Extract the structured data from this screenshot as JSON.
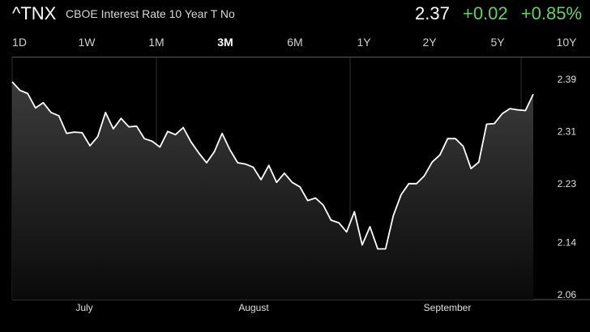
{
  "header": {
    "symbol": "^TNX",
    "name": "CBOE Interest Rate 10 Year T No",
    "last": "2.37",
    "change": "+0.02",
    "change_pct": "+0.85%",
    "change_color": "#5fd35f"
  },
  "ranges": [
    {
      "label": "1D",
      "active": false
    },
    {
      "label": "1W",
      "active": false
    },
    {
      "label": "1M",
      "active": false
    },
    {
      "label": "3M",
      "active": true
    },
    {
      "label": "6M",
      "active": false
    },
    {
      "label": "1Y",
      "active": false
    },
    {
      "label": "2Y",
      "active": false
    },
    {
      "label": "5Y",
      "active": false
    },
    {
      "label": "10Y",
      "active": false
    }
  ],
  "chart_data": {
    "type": "area",
    "ylim": [
      2.06,
      2.39
    ],
    "y_ticks": [
      "2.39",
      "2.31",
      "2.23",
      "2.14",
      "2.06"
    ],
    "x_labels": [
      "July",
      "August",
      "September"
    ],
    "grid": true,
    "line_color": "#ffffff",
    "series": [
      {
        "values": [
          2.385,
          2.372,
          2.367,
          2.345,
          2.353,
          2.338,
          2.333,
          2.306,
          2.308,
          2.307,
          2.287,
          2.301,
          2.338,
          2.313,
          2.329,
          2.316,
          2.317,
          2.298,
          2.294,
          2.285,
          2.309,
          2.304,
          2.315,
          2.293,
          2.276,
          2.261,
          2.278,
          2.306,
          2.281,
          2.261,
          2.259,
          2.254,
          2.235,
          2.257,
          2.231,
          2.245,
          2.231,
          2.224,
          2.203,
          2.207,
          2.196,
          2.173,
          2.169,
          2.155,
          2.186,
          2.135,
          2.163,
          2.129,
          2.129,
          2.18,
          2.212,
          2.229,
          2.229,
          2.241,
          2.262,
          2.273,
          2.298,
          2.298,
          2.286,
          2.252,
          2.262,
          2.32,
          2.321,
          2.336,
          2.344,
          2.342,
          2.341,
          2.366
        ]
      }
    ]
  }
}
